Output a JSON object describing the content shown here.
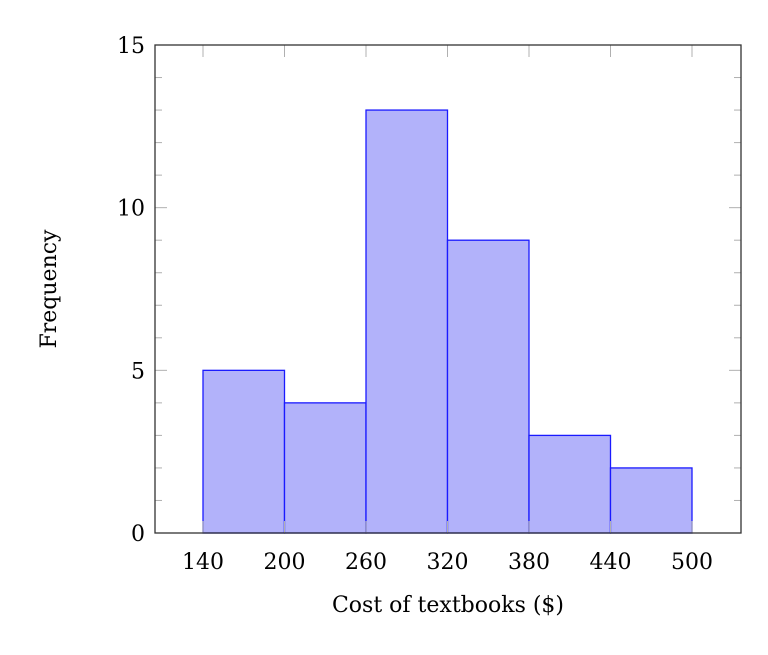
{
  "chart_data": {
    "type": "bar",
    "subtype": "histogram",
    "title": "",
    "xlabel": "Cost of textbooks ($)",
    "ylabel": "Frequency",
    "bin_edges": [
      140,
      200,
      260,
      320,
      380,
      440,
      500
    ],
    "categories": [
      "140-200",
      "200-260",
      "260-320",
      "320-380",
      "380-440",
      "440-500"
    ],
    "values": [
      5,
      4,
      13,
      9,
      3,
      2
    ],
    "x_ticks": [
      140,
      200,
      260,
      320,
      380,
      440,
      500
    ],
    "y_ticks": [
      0,
      5,
      10,
      15
    ],
    "xlim": [
      104,
      536
    ],
    "ylim": [
      0,
      15
    ],
    "grid": false,
    "legend": null,
    "colors": {
      "fill": "#b2b2fa",
      "stroke": "#1a1aff",
      "axis": "#333333",
      "tick": "#b0b0b0"
    }
  }
}
